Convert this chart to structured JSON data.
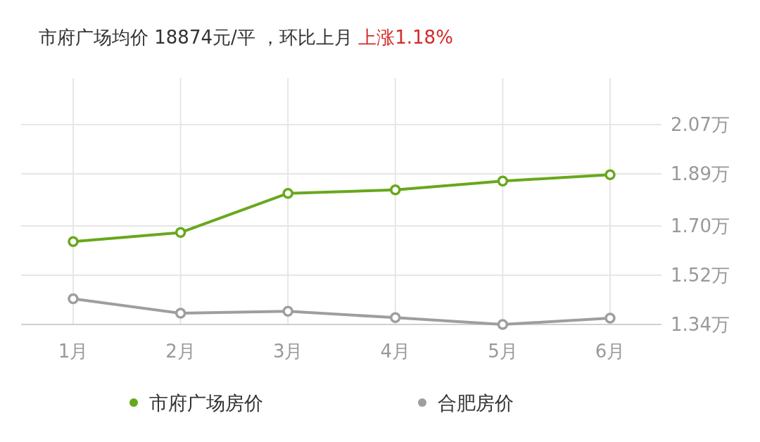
{
  "chart_data": {
    "type": "line",
    "title": "市府广场均价 18874元/平 ，环比上月",
    "subtitle": "上涨1.18%",
    "categories": [
      "1月",
      "2月",
      "3月",
      "4月",
      "5月",
      "6月"
    ],
    "series": [
      {
        "name": "市府广场房价",
        "color": "#68a81c",
        "values": [
          1.643,
          1.676,
          1.819,
          1.832,
          1.864,
          1.887
        ]
      },
      {
        "name": "合肥房价",
        "color": "#9e9e9e",
        "values": [
          1.434,
          1.381,
          1.388,
          1.365,
          1.34,
          1.363
        ]
      }
    ],
    "ylim": [
      1.34,
      2.24
    ],
    "yticks": [
      {
        "value": 1.34,
        "label": "1.34万"
      },
      {
        "value": 1.52,
        "label": "1.52万"
      },
      {
        "value": 1.7,
        "label": "1.70万"
      },
      {
        "value": 1.89,
        "label": "1.89万"
      },
      {
        "value": 2.07,
        "label": "2.07万"
      }
    ],
    "grid": true,
    "legend": "bottom",
    "marker": "circle"
  }
}
